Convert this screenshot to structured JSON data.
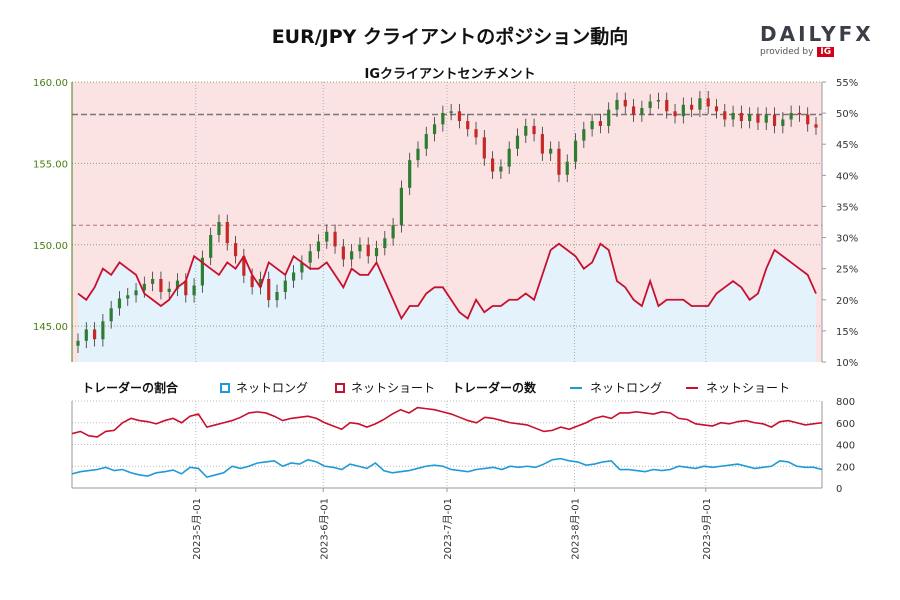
{
  "header": {
    "title": "EUR/JPY クライアントのポジション動向",
    "subtitle": "IGクライアントセンチメント"
  },
  "logo": {
    "brand": "DAILYFX",
    "provided_by": "provided by",
    "ig": "IG"
  },
  "colors": {
    "price_axis": "#4a7d12",
    "net_long": "#1e9ad6",
    "net_short": "#c8102e",
    "long_fill": "#e3f2fb",
    "short_fill": "#fbe3e4",
    "candle_up": "#2e7d32",
    "candle_down": "#c62828"
  },
  "legend": {
    "ratio_title": "トレーダーの割合",
    "ratio_long": "ネットロング",
    "ratio_short": "ネットショート",
    "count_title": "トレーダーの数",
    "count_long": "ネットロング",
    "count_short": "ネットショート"
  },
  "chart_data": [
    {
      "type": "candlestick",
      "title": "EUR/JPY",
      "y_left_ticks": [
        "145.00",
        "150.00",
        "155.00",
        "160.00"
      ],
      "y_left_range": [
        142.8,
        160.0
      ],
      "y_right_ticks": [
        "10%",
        "15%",
        "20%",
        "25%",
        "30%",
        "35%",
        "40%",
        "45%",
        "50%",
        "55%"
      ],
      "y_right_range": [
        10,
        55
      ],
      "reference_lines": [
        158.0,
        151.2
      ],
      "price_close": [
        144.1,
        144.8,
        144.2,
        145.3,
        146.1,
        146.7,
        146.9,
        147.2,
        147.6,
        147.9,
        147.1,
        147.3,
        147.8,
        146.9,
        147.5,
        149.2,
        150.6,
        151.4,
        150.1,
        149.3,
        148.1,
        147.4,
        147.9,
        146.6,
        147.1,
        147.8,
        148.3,
        148.9,
        149.6,
        150.2,
        150.8,
        149.9,
        149.1,
        149.6,
        150.0,
        149.3,
        149.8,
        150.4,
        151.2,
        153.5,
        155.2,
        155.9,
        156.8,
        157.4,
        158.1,
        158.2,
        157.6,
        157.1,
        156.6,
        155.3,
        154.5,
        154.8,
        155.9,
        156.7,
        157.3,
        156.8,
        155.6,
        155.9,
        154.3,
        155.1,
        156.4,
        157.1,
        157.6,
        157.3,
        158.3,
        158.9,
        158.5,
        158.0,
        158.4,
        158.8,
        158.9,
        158.2,
        157.9,
        158.6,
        158.3,
        159.0,
        158.5,
        158.2,
        157.7,
        158.1,
        157.6,
        158.0,
        157.5,
        158.0,
        157.3,
        157.7,
        158.1,
        158.0,
        157.4,
        157.2
      ],
      "net_long_pct": [
        21,
        20,
        22,
        25,
        24,
        26,
        25,
        24,
        21,
        20,
        19,
        20,
        22,
        23,
        27,
        26,
        25,
        24,
        26,
        25,
        27,
        24,
        22,
        26,
        25,
        24,
        27,
        26,
        25,
        25,
        26,
        24,
        22,
        25,
        24,
        24,
        26,
        23,
        20,
        17,
        19,
        19,
        21,
        22,
        22,
        20,
        18,
        17,
        20,
        18,
        19,
        19,
        20,
        20,
        21,
        20,
        24,
        28,
        29,
        28,
        27,
        25,
        26,
        29,
        28,
        23,
        22,
        20,
        19,
        23,
        19,
        20,
        20,
        20,
        19,
        19,
        19,
        21,
        22,
        23,
        22,
        20,
        21,
        25,
        28,
        27,
        26,
        25,
        24,
        21
      ],
      "net_short_pct": [
        79,
        80,
        78,
        75,
        76,
        74,
        75,
        76,
        79,
        80,
        81,
        80,
        78,
        77,
        73,
        74,
        75,
        76,
        74,
        75,
        73,
        76,
        78,
        74,
        75,
        76,
        73,
        74,
        75,
        75,
        74,
        76,
        78,
        75,
        76,
        76,
        74,
        77,
        80,
        83,
        81,
        81,
        79,
        78,
        78,
        80,
        82,
        83,
        80,
        82,
        81,
        81,
        80,
        80,
        79,
        80,
        76,
        72,
        71,
        72,
        73,
        75,
        74,
        71,
        72,
        77,
        78,
        80,
        81,
        77,
        81,
        80,
        80,
        80,
        81,
        81,
        81,
        79,
        78,
        77,
        78,
        80,
        79,
        75,
        72,
        73,
        74,
        75,
        76,
        79
      ]
    },
    {
      "type": "line",
      "title": "トレーダーの数",
      "x_ticks": [
        "2023-5月-01",
        "2023-6月-01",
        "2023-7月-01",
        "2023-8月-01",
        "2023-9月-01"
      ],
      "y_ticks": [
        "0",
        "200",
        "400",
        "600",
        "800"
      ],
      "y_range": [
        0,
        800
      ],
      "series": [
        {
          "name": "ネットロング",
          "values": [
            130,
            150,
            160,
            170,
            190,
            160,
            170,
            140,
            120,
            110,
            140,
            150,
            165,
            130,
            190,
            180,
            100,
            120,
            140,
            200,
            180,
            200,
            230,
            240,
            250,
            200,
            230,
            220,
            260,
            240,
            200,
            190,
            170,
            220,
            200,
            180,
            230,
            160,
            140,
            150,
            160,
            180,
            200,
            210,
            200,
            170,
            160,
            150,
            170,
            180,
            190,
            170,
            200,
            190,
            200,
            190,
            220,
            260,
            270,
            250,
            240,
            210,
            220,
            240,
            250,
            170,
            170,
            160,
            150,
            170,
            160,
            170,
            200,
            190,
            180,
            200,
            190,
            200,
            210,
            220,
            200,
            180,
            190,
            200,
            250,
            240,
            200,
            190,
            190,
            170
          ]
        },
        {
          "name": "ネットショート",
          "values": [
            500,
            520,
            480,
            470,
            520,
            530,
            600,
            640,
            620,
            610,
            590,
            620,
            640,
            600,
            660,
            680,
            560,
            580,
            600,
            620,
            650,
            690,
            700,
            690,
            660,
            620,
            640,
            650,
            660,
            640,
            600,
            570,
            540,
            600,
            590,
            560,
            590,
            630,
            680,
            720,
            690,
            740,
            730,
            720,
            700,
            680,
            650,
            620,
            600,
            650,
            640,
            620,
            600,
            590,
            580,
            550,
            520,
            530,
            560,
            540,
            570,
            600,
            640,
            660,
            640,
            690,
            690,
            700,
            690,
            680,
            700,
            690,
            640,
            630,
            590,
            580,
            570,
            600,
            590,
            610,
            620,
            600,
            590,
            560,
            610,
            620,
            600,
            580,
            590,
            600
          ]
        }
      ]
    }
  ]
}
